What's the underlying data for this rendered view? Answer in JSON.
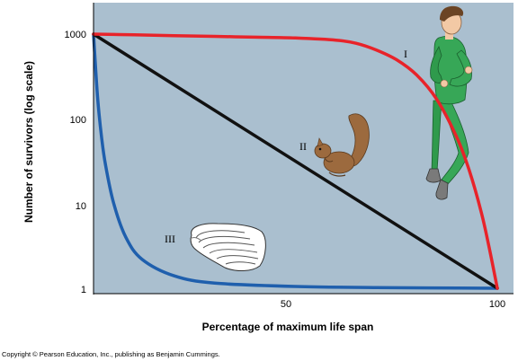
{
  "chart_data": {
    "type": "line",
    "xlabel": "Percentage of maximum life span",
    "ylabel": "Number of survivors (log scale)",
    "xlim": [
      0,
      100
    ],
    "ylim": [
      1,
      1000
    ],
    "yscale": "log",
    "x_ticks": [
      50,
      100
    ],
    "y_ticks": [
      1,
      10,
      100,
      1000
    ],
    "x_tick_labels": [
      "50",
      "100"
    ],
    "y_tick_labels": [
      "1",
      "10",
      "100",
      "1000"
    ],
    "grid": false,
    "legend": "none",
    "background_color": "#aabfcf",
    "series": [
      {
        "name": "I",
        "color": "#e8232a",
        "x": [
          0,
          10,
          20,
          30,
          40,
          50,
          60,
          65,
          70,
          75,
          80,
          85,
          90,
          93,
          96,
          98,
          100
        ],
        "y": [
          1000,
          980,
          960,
          940,
          920,
          900,
          850,
          780,
          650,
          500,
          330,
          170,
          60,
          25,
          8,
          3,
          1
        ]
      },
      {
        "name": "II",
        "color": "#111111",
        "x": [
          0,
          100
        ],
        "y": [
          1000,
          1
        ]
      },
      {
        "name": "III",
        "color": "#1f5fad",
        "x": [
          0,
          1,
          2,
          3,
          5,
          8,
          12,
          20,
          30,
          50,
          70,
          100
        ],
        "y": [
          1000,
          180,
          60,
          28,
          10,
          4,
          2.2,
          1.4,
          1.15,
          1.05,
          1.02,
          1
        ]
      }
    ]
  },
  "copyright": "Copyright © Pearson Education, Inc., publishing as Benjamin Cummings."
}
